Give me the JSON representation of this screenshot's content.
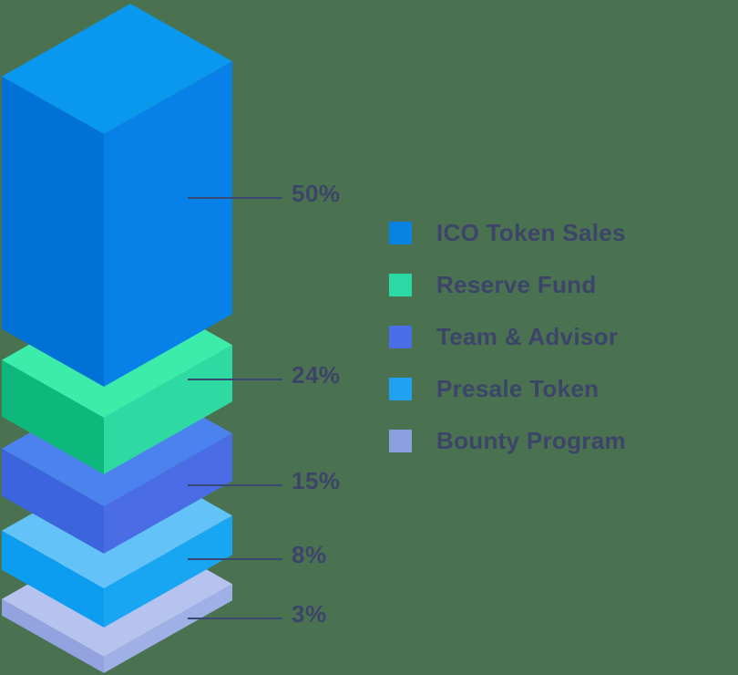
{
  "chart_data": {
    "type": "pie",
    "variant": "isometric-stacked-blocks",
    "title": "",
    "legend_position": "right",
    "background": "#4A7150",
    "text_color": "#3C4569",
    "leader_line_color": "#3A4875",
    "segments": [
      {
        "label": "ICO Token Sales",
        "value": 50,
        "pct_label": "50%",
        "colors": {
          "top": "#0A97EE",
          "left": "#0071D7",
          "right": "#0781E7",
          "legend": "#0983E2"
        }
      },
      {
        "label": "Reserve Fund",
        "value": 24,
        "pct_label": "24%",
        "colors": {
          "top": "#3BECAA",
          "left": "#0EB87C",
          "right": "#2EDAA1",
          "legend": "#2BD9A4"
        }
      },
      {
        "label": "Team & Advisor",
        "value": 15,
        "pct_label": "15%",
        "colors": {
          "top": "#4C82EE",
          "left": "#3B64DD",
          "right": "#4A6CE5",
          "legend": "#4A6DE8"
        }
      },
      {
        "label": "Presale Token",
        "value": 8,
        "pct_label": "8%",
        "colors": {
          "top": "#63C2F8",
          "left": "#0D9DF0",
          "right": "#18A5F2",
          "legend": "#21A1F2"
        }
      },
      {
        "label": "Bounty Program",
        "value": 3,
        "pct_label": "3%",
        "colors": {
          "top": "#B6C3EF",
          "left": "#92A3E0",
          "right": "#9FB0E7",
          "legend": "#8CA0E0"
        }
      }
    ]
  }
}
